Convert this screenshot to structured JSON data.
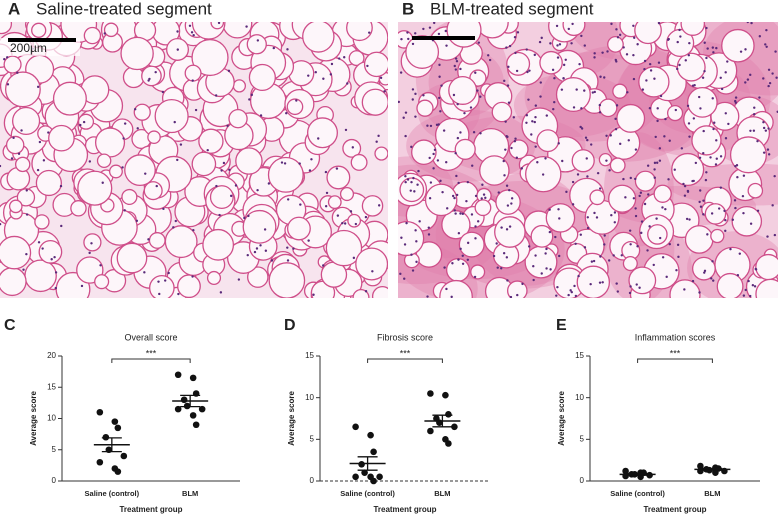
{
  "panels": [
    {
      "letter": "A",
      "title": "Saline-treated segment",
      "scale": "200µm"
    },
    {
      "letter": "B",
      "title": "BLM-treated segment"
    }
  ],
  "chart_data": [
    {
      "type": "scatter",
      "panel": "C",
      "title": "Overall score",
      "xlabel": "Treatment group",
      "ylabel": "Average score",
      "significance": "***",
      "categories": [
        "Saline (control)",
        "BLM"
      ],
      "ylim": [
        0,
        20
      ],
      "yticks": [
        0,
        5,
        10,
        15,
        20
      ],
      "color": "#111111",
      "series": [
        {
          "name": "Saline (control)",
          "values": [
            11,
            9.5,
            8.5,
            7,
            5,
            4,
            3,
            2,
            1.5
          ]
        },
        {
          "name": "BLM",
          "values": [
            17,
            16.5,
            14,
            13,
            12,
            11.5,
            11.5,
            10.5,
            9
          ]
        }
      ],
      "mean": [
        5.8,
        12.8
      ],
      "sem": [
        1.1,
        0.9
      ]
    },
    {
      "type": "scatter",
      "panel": "D",
      "title": "Fibrosis score",
      "xlabel": "Treatment group",
      "ylabel": "Average score",
      "significance": "***",
      "categories": [
        "Saline (control)",
        "BLM"
      ],
      "ylim": [
        0,
        15
      ],
      "yticks": [
        0,
        5,
        10,
        15
      ],
      "color": "#111111",
      "series": [
        {
          "name": "Saline (control)",
          "values": [
            6.5,
            5.5,
            3.5,
            2,
            1,
            0.5,
            0.5,
            0.5,
            0
          ]
        },
        {
          "name": "BLM",
          "values": [
            10.5,
            10.3,
            8,
            7.5,
            7,
            6.5,
            6,
            5,
            4.5
          ]
        }
      ],
      "mean": [
        2.1,
        7.2
      ],
      "sem": [
        0.8,
        0.7
      ]
    },
    {
      "type": "scatter",
      "panel": "E",
      "title": "Inflammation scores",
      "xlabel": "Treatment group",
      "ylabel": "Average score",
      "significance": "***",
      "categories": [
        "Saline (control)",
        "BLM"
      ],
      "ylim": [
        0,
        15
      ],
      "yticks": [
        0,
        5,
        10,
        15
      ],
      "color": "#111111",
      "series": [
        {
          "name": "Saline (control)",
          "values": [
            1.2,
            1,
            1,
            0.8,
            0.8,
            0.7,
            0.6,
            0.5
          ]
        },
        {
          "name": "BLM",
          "values": [
            1.8,
            1.6,
            1.5,
            1.4,
            1.3,
            1.2,
            1.2,
            1
          ]
        }
      ],
      "mean": [
        0.8,
        1.4
      ],
      "sem": [
        0.1,
        0.1
      ]
    }
  ]
}
